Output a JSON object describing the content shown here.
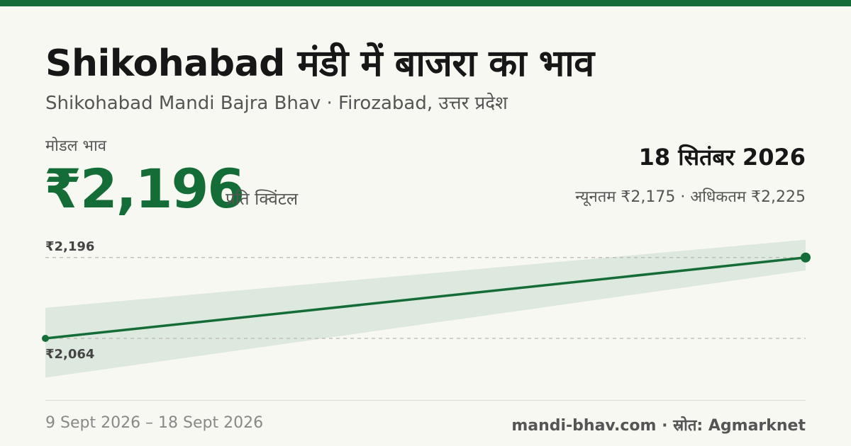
{
  "header": {
    "title": "Shikohabad मंडी में बाजरा का भाव",
    "subtitle": "Shikohabad Mandi Bajra Bhav · Firozabad, उत्तर प्रदेश"
  },
  "price": {
    "label": "मोडल भाव",
    "value": "₹2,196",
    "unit": "प्रति क्विंटल",
    "date": "18 सितंबर 2026",
    "range_text": "न्यूनतम ₹2,175 · अधिकतम ₹2,225"
  },
  "footer": {
    "date_range": "9 Sept 2026 – 18 Sept 2026",
    "source": "mandi-bhav.com · स्रोत: Agmarknet"
  },
  "colors": {
    "accent": "#146c36",
    "band": "#dde8df",
    "background": "#f8f8f3"
  },
  "chart_data": {
    "type": "line",
    "x": [
      "9 Sept 2026",
      "18 Sept 2026"
    ],
    "series": [
      {
        "values": [
          2064,
          2196
        ]
      }
    ],
    "band": {
      "min": [
        2000,
        2175
      ],
      "max": [
        2114,
        2225
      ]
    },
    "reference_labels": [
      "₹2,196",
      "₹2,064"
    ],
    "reference_values": [
      2196,
      2064
    ],
    "ylim": [
      1975,
      2235
    ],
    "grid": false
  }
}
